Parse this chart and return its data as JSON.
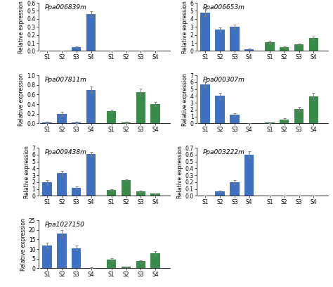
{
  "panels": [
    {
      "title": "Ppa006839m",
      "ylim": [
        0,
        0.6
      ],
      "yticks": [
        0.0,
        0.1,
        0.2,
        0.3,
        0.4,
        0.5,
        0.6
      ],
      "blue_values": [
        0.005,
        0.005,
        0.05,
        0.46
      ],
      "green_values": [
        0.005,
        0.005,
        0.005,
        0.005
      ],
      "blue_errors": [
        0.003,
        0.003,
        0.008,
        0.035
      ],
      "green_errors": [
        0.002,
        0.002,
        0.002,
        0.002
      ]
    },
    {
      "title": "Ppa006653m",
      "ylim": [
        0,
        6
      ],
      "yticks": [
        0,
        1,
        2,
        3,
        4,
        5,
        6
      ],
      "blue_values": [
        4.8,
        2.65,
        3.0,
        0.25
      ],
      "green_values": [
        1.1,
        0.45,
        0.8,
        1.65
      ],
      "blue_errors": [
        0.5,
        0.28,
        0.28,
        0.08
      ],
      "green_errors": [
        0.18,
        0.08,
        0.08,
        0.18
      ]
    },
    {
      "title": "Ppa007811m",
      "ylim": [
        0,
        1.0
      ],
      "yticks": [
        0.0,
        0.2,
        0.4,
        0.6,
        0.8,
        1.0
      ],
      "blue_values": [
        0.02,
        0.2,
        0.02,
        0.7
      ],
      "green_values": [
        0.25,
        0.02,
        0.65,
        0.4
      ],
      "blue_errors": [
        0.01,
        0.04,
        0.01,
        0.07
      ],
      "green_errors": [
        0.03,
        0.01,
        0.08,
        0.04
      ]
    },
    {
      "title": "Ppa000307m",
      "ylim": [
        0,
        7
      ],
      "yticks": [
        0,
        1,
        2,
        3,
        4,
        5,
        6,
        7
      ],
      "blue_values": [
        5.7,
        4.0,
        1.3,
        0.05
      ],
      "green_values": [
        0.1,
        0.6,
        2.1,
        3.9
      ],
      "blue_errors": [
        0.4,
        0.5,
        0.2,
        0.03
      ],
      "green_errors": [
        0.03,
        0.12,
        0.3,
        0.5
      ]
    },
    {
      "title": "Ppa009438m",
      "ylim": [
        0,
        7
      ],
      "yticks": [
        0,
        1,
        2,
        3,
        4,
        5,
        6,
        7
      ],
      "blue_values": [
        2.0,
        3.3,
        1.2,
        6.1
      ],
      "green_values": [
        0.9,
        2.3,
        0.65,
        0.35
      ],
      "blue_errors": [
        0.3,
        0.35,
        0.18,
        0.3
      ],
      "green_errors": [
        0.12,
        0.12,
        0.08,
        0.05
      ]
    },
    {
      "title": "Ppa003222m",
      "ylim": [
        0,
        0.7
      ],
      "yticks": [
        0.0,
        0.1,
        0.2,
        0.3,
        0.4,
        0.5,
        0.6,
        0.7
      ],
      "blue_values": [
        0.005,
        0.07,
        0.2,
        0.6
      ],
      "green_values": [
        0.005,
        0.005,
        0.005,
        0.005
      ],
      "blue_errors": [
        0.002,
        0.01,
        0.03,
        0.05
      ],
      "green_errors": [
        0.002,
        0.002,
        0.002,
        0.002
      ]
    },
    {
      "title": "Ppa1027150",
      "ylim": [
        0,
        25
      ],
      "yticks": [
        0,
        5,
        10,
        15,
        20,
        25
      ],
      "blue_values": [
        12.0,
        18.0,
        10.5,
        0.3
      ],
      "green_values": [
        4.5,
        0.8,
        3.8,
        7.8
      ],
      "blue_errors": [
        1.5,
        1.8,
        1.2,
        0.08
      ],
      "green_errors": [
        0.8,
        0.15,
        0.5,
        1.0
      ]
    }
  ],
  "blue_color": "#4070c0",
  "green_color": "#3a8a4a",
  "xlabel_groups": [
    "S1",
    "S2",
    "S3",
    "S4",
    "S1",
    "S2",
    "S3",
    "S4"
  ],
  "ylabel": "Relative expression",
  "bar_width": 0.65,
  "title_fontsize": 6.5,
  "tick_fontsize": 5.5,
  "label_fontsize": 5.5
}
